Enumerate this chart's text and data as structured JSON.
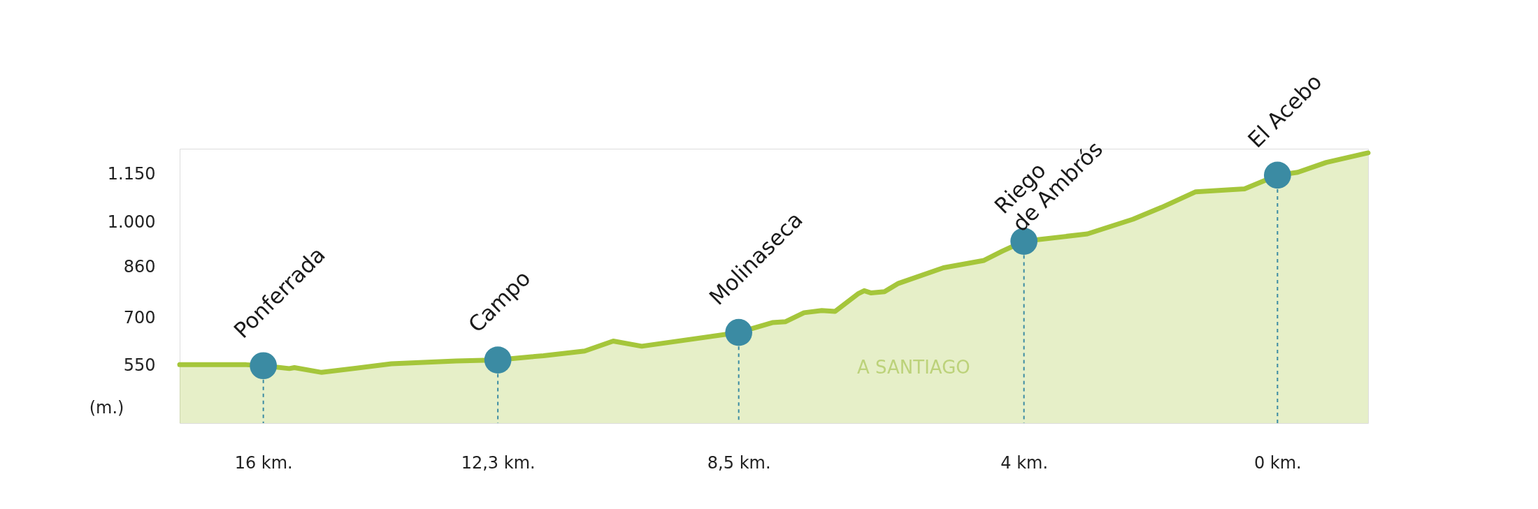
{
  "chart_data": {
    "type": "area",
    "ylabel": "(m.)",
    "xlim": [
      17.32,
      -1.43
    ],
    "ylim": [
      370,
      1230
    ],
    "xticks": [
      {
        "value": 16,
        "label": "16 km."
      },
      {
        "value": 12.3,
        "label": "12,3 km."
      },
      {
        "value": 8.5,
        "label": "8,5 km."
      },
      {
        "value": 4,
        "label": "4 km."
      },
      {
        "value": 0,
        "label": "0 km."
      }
    ],
    "yticks": [
      550,
      700,
      860,
      {
        "value": 1000,
        "label": "1.000"
      },
      {
        "value": 1150,
        "label": "1.150"
      }
    ],
    "grid": false,
    "series": [
      {
        "color": "#a5c63b",
        "x": [
          17.32,
          16.27,
          16,
          15.59,
          15.51,
          15.08,
          13.98,
          12.96,
          12.3,
          11.77,
          11.58,
          10.93,
          10.48,
          10.03,
          8.5,
          7.97,
          7.76,
          7.47,
          7.19,
          6.98,
          6.62,
          6.52,
          6.41,
          6.2,
          5.98,
          5.27,
          4.63,
          4.34,
          4,
          3.0,
          2.28,
          1.83,
          1.29,
          0.52,
          0,
          -0.32,
          -0.77,
          -1.43
        ],
        "values": [
          553,
          553,
          550,
          541,
          544,
          529,
          556,
          565,
          568,
          578,
          581,
          596,
          627,
          611,
          654,
          685,
          688,
          716,
          723,
          720,
          775,
          785,
          778,
          782,
          808,
          857,
          880,
          909,
          940,
          963,
          1009,
          1046,
          1095,
          1104,
          1147,
          1156,
          1187,
          1217
        ]
      },
      {
        "type": "lollipop",
        "color": "#3b8ba3",
        "marker": "circle",
        "line_style": "dashed",
        "x": [
          16,
          12.3,
          8.5,
          4,
          0
        ],
        "values": [
          550,
          568,
          654,
          940,
          1147
        ]
      }
    ],
    "annotations": [
      {
        "text": "Ponferrada",
        "x": 16,
        "y": 550
      },
      {
        "text": "Campo",
        "x": 12.3,
        "y": 568
      },
      {
        "text": "Molinaseca",
        "x": 8.5,
        "y": 654
      },
      {
        "text": "Riego\nde Ambrós",
        "x": 4,
        "y": 940
      },
      {
        "text": "El Acebo",
        "x": 0,
        "y": 1147
      },
      "A SANTIAGO"
    ]
  }
}
